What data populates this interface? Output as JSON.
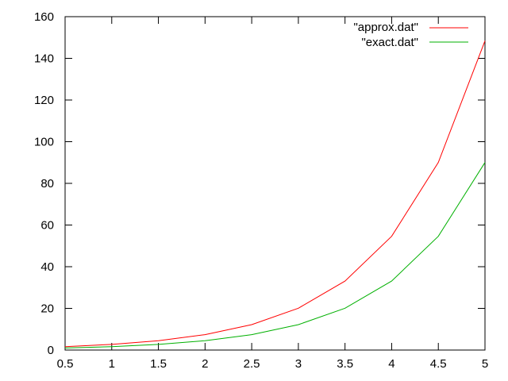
{
  "chart_data": {
    "type": "line",
    "title": "",
    "xlabel": "",
    "ylabel": "",
    "xlim": [
      0.5,
      5
    ],
    "ylim": [
      0,
      160
    ],
    "x_ticks": [
      0.5,
      1,
      1.5,
      2,
      2.5,
      3,
      3.5,
      4,
      4.5,
      5
    ],
    "x_tick_labels": [
      "0.5",
      "1",
      "1.5",
      "2",
      "2.5",
      "3",
      "3.5",
      "4",
      "4.5",
      "5"
    ],
    "y_ticks": [
      0,
      20,
      40,
      60,
      80,
      100,
      120,
      140,
      160
    ],
    "y_tick_labels": [
      "0",
      "20",
      "40",
      "60",
      "80",
      "100",
      "120",
      "140",
      "160"
    ],
    "grid": false,
    "legend_position": "top-right",
    "series": [
      {
        "name": "\"approx.dat\"",
        "color": "#ff0000",
        "x": [
          0.5,
          1,
          1.5,
          2,
          2.5,
          3,
          3.5,
          4,
          4.5,
          5
        ],
        "y": [
          1.65,
          2.72,
          4.48,
          7.39,
          12.18,
          20.09,
          33.12,
          54.6,
          90.02,
          148.41
        ]
      },
      {
        "name": "\"exact.dat\"",
        "color": "#00b000",
        "x": [
          0.5,
          1,
          1.5,
          2,
          2.5,
          3,
          3.5,
          4,
          4.5,
          5
        ],
        "y": [
          1.0,
          1.65,
          2.72,
          4.48,
          7.39,
          12.18,
          20.09,
          33.12,
          54.6,
          90.02
        ]
      }
    ]
  }
}
